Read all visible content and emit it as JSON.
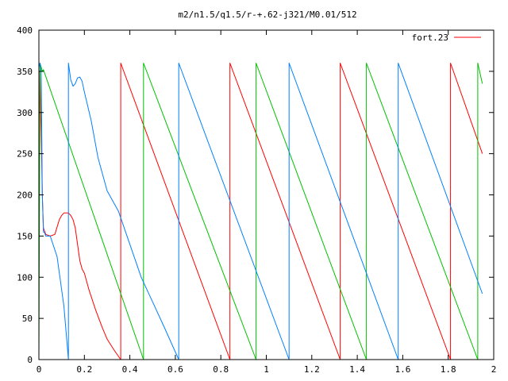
{
  "chart_data": {
    "type": "line",
    "title": "m2/n1.5/q1.5/r-+.62-j321/M0.01/512",
    "xlabel": "",
    "ylabel": "",
    "xlim": [
      0,
      2
    ],
    "ylim": [
      0,
      400
    ],
    "grid": false,
    "legend_position": "top-right",
    "x_ticks": [
      0,
      0.2,
      0.4,
      0.6,
      0.8,
      1,
      1.2,
      1.4,
      1.6,
      1.8,
      2
    ],
    "x_tick_labels": [
      "0",
      "0.2",
      "0.4",
      "0.6",
      "0.8",
      "1",
      "1.2",
      "1.4",
      "1.6",
      "1.8",
      "2"
    ],
    "y_ticks": [
      0,
      50,
      100,
      150,
      200,
      250,
      300,
      350,
      400
    ],
    "y_tick_labels": [
      "0",
      "50",
      "100",
      "150",
      "200",
      "250",
      "300",
      "350",
      "400"
    ],
    "series": [
      {
        "name": "fort.23",
        "color": "#ff0000",
        "x": [
          0.0,
          0.005,
          0.008,
          0.012,
          0.015,
          0.02,
          0.03,
          0.05,
          0.07,
          0.09,
          0.1,
          0.11,
          0.12,
          0.13,
          0.14,
          0.15,
          0.16,
          0.17,
          0.18,
          0.19,
          0.2,
          0.22,
          0.25,
          0.28,
          0.3,
          0.33,
          0.36,
          0.36,
          0.84,
          0.84,
          1.325,
          1.325,
          1.81,
          1.81,
          1.95
        ],
        "values": [
          180,
          350,
          300,
          250,
          200,
          160,
          152,
          150,
          152,
          170,
          175,
          178,
          178,
          178,
          175,
          170,
          160,
          140,
          120,
          110,
          105,
          85,
          60,
          38,
          25,
          12,
          0,
          360,
          0,
          360,
          0,
          360,
          0,
          360,
          250
        ]
      },
      {
        "name": "",
        "color": "#00c000",
        "x": [
          0.0,
          0.005,
          0.01,
          0.015,
          0.02,
          0.46,
          0.46,
          0.955,
          0.955,
          1.44,
          1.44,
          1.93,
          1.93,
          1.95
        ],
        "values": [
          0,
          360,
          355,
          350,
          352,
          0,
          360,
          0,
          360,
          0,
          360,
          0,
          360,
          335
        ]
      },
      {
        "name": "",
        "color": "#0080ff",
        "x": [
          0.0,
          0.005,
          0.01,
          0.015,
          0.02,
          0.025,
          0.03,
          0.05,
          0.08,
          0.11,
          0.13,
          0.13,
          0.14,
          0.15,
          0.16,
          0.17,
          0.18,
          0.19,
          0.2,
          0.23,
          0.26,
          0.3,
          0.35,
          0.4,
          0.45,
          0.5,
          0.55,
          0.615,
          0.615,
          1.1,
          1.1,
          1.58,
          1.58,
          1.95
        ],
        "values": [
          355,
          360,
          350,
          200,
          155,
          154,
          150,
          150,
          125,
          65,
          0,
          360,
          340,
          332,
          335,
          342,
          343,
          338,
          325,
          290,
          245,
          205,
          180,
          140,
          100,
          70,
          40,
          0,
          360,
          0,
          360,
          0,
          360,
          80
        ]
      }
    ]
  }
}
